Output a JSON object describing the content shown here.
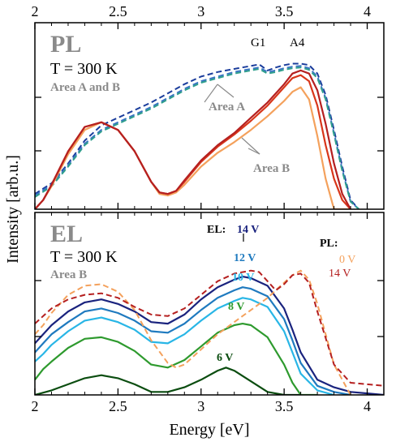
{
  "chart_data": [
    {
      "type": "line",
      "panel": "PL",
      "xlabel": "Energy [eV]",
      "ylabel": "Intensity [arb.u.]",
      "xlim": [
        2,
        4.1
      ],
      "x_ticks": [
        "2",
        "2.5",
        "3",
        "3.5",
        "4"
      ],
      "y_scale": "log",
      "y_tick_labels": false,
      "texts": {
        "tag": "PL",
        "temperature": "T = 300 K",
        "areas": "Area A and B",
        "area_a": "Area A",
        "area_b": "Area B",
        "peak_g1": "G1",
        "peak_a4": "A4"
      },
      "series": [
        {
          "group": "Area A",
          "color": "#1b3d9c",
          "dash": true,
          "x": [
            2.0,
            2.1,
            2.2,
            2.3,
            2.4,
            2.5,
            2.6,
            2.7,
            2.8,
            2.9,
            3.0,
            3.1,
            3.2,
            3.3,
            3.35,
            3.4,
            3.45,
            3.5,
            3.55,
            3.6,
            3.65,
            3.7,
            3.75,
            3.8,
            3.85,
            3.9,
            3.95
          ],
          "y": [
            0.1,
            0.17,
            0.3,
            0.45,
            0.55,
            0.6,
            0.65,
            0.7,
            0.76,
            0.82,
            0.87,
            0.9,
            0.92,
            0.94,
            0.95,
            0.91,
            0.93,
            0.945,
            0.955,
            0.955,
            0.945,
            0.89,
            0.75,
            0.52,
            0.28,
            0.06,
            0.0
          ]
        },
        {
          "group": "Area A",
          "color": "#3a74c4",
          "dash": true,
          "x": [
            2.0,
            2.1,
            2.2,
            2.3,
            2.4,
            2.5,
            2.6,
            2.7,
            2.8,
            2.9,
            3.0,
            3.1,
            3.2,
            3.3,
            3.35,
            3.4,
            3.45,
            3.5,
            3.55,
            3.6,
            3.65,
            3.7,
            3.75,
            3.8,
            3.85,
            3.9,
            3.95
          ],
          "y": [
            0.09,
            0.16,
            0.29,
            0.43,
            0.52,
            0.57,
            0.62,
            0.67,
            0.73,
            0.79,
            0.84,
            0.87,
            0.9,
            0.92,
            0.93,
            0.9,
            0.91,
            0.925,
            0.935,
            0.94,
            0.925,
            0.87,
            0.73,
            0.5,
            0.26,
            0.05,
            0.0
          ]
        },
        {
          "group": "Area A",
          "color": "#2f9e8c",
          "dash": true,
          "x": [
            2.0,
            2.1,
            2.2,
            2.3,
            2.4,
            2.5,
            2.6,
            2.7,
            2.8,
            2.9,
            3.0,
            3.1,
            3.2,
            3.3,
            3.35,
            3.4,
            3.45,
            3.5,
            3.55,
            3.6,
            3.65,
            3.7,
            3.75,
            3.8,
            3.85,
            3.9,
            3.95
          ],
          "y": [
            0.08,
            0.15,
            0.28,
            0.42,
            0.51,
            0.56,
            0.61,
            0.66,
            0.72,
            0.78,
            0.83,
            0.86,
            0.89,
            0.91,
            0.92,
            0.89,
            0.9,
            0.915,
            0.925,
            0.93,
            0.915,
            0.86,
            0.72,
            0.49,
            0.25,
            0.05,
            0.0
          ]
        },
        {
          "group": "Area B",
          "color": "#f4a15c",
          "dash": false,
          "x": [
            2.0,
            2.05,
            2.1,
            2.2,
            2.3,
            2.4,
            2.5,
            2.6,
            2.7,
            2.75,
            2.8,
            2.85,
            2.9,
            3.0,
            3.1,
            3.2,
            3.3,
            3.4,
            3.5,
            3.55,
            3.6,
            3.65,
            3.7,
            3.75,
            3.8,
            3.85,
            3.9
          ],
          "y": [
            0.0,
            0.06,
            0.15,
            0.36,
            0.52,
            0.57,
            0.52,
            0.38,
            0.18,
            0.1,
            0.09,
            0.11,
            0.16,
            0.28,
            0.37,
            0.44,
            0.52,
            0.61,
            0.71,
            0.77,
            0.8,
            0.72,
            0.48,
            0.2,
            0.0,
            0.0,
            0.0
          ]
        },
        {
          "group": "Area B",
          "color": "#d8361a",
          "dash": false,
          "x": [
            2.0,
            2.05,
            2.1,
            2.2,
            2.3,
            2.4,
            2.5,
            2.6,
            2.7,
            2.75,
            2.8,
            2.85,
            2.9,
            3.0,
            3.1,
            3.2,
            3.3,
            3.4,
            3.5,
            3.55,
            3.6,
            3.65,
            3.7,
            3.75,
            3.8,
            3.85,
            3.9
          ],
          "y": [
            0.0,
            0.06,
            0.16,
            0.38,
            0.54,
            0.57,
            0.52,
            0.38,
            0.18,
            0.11,
            0.1,
            0.12,
            0.18,
            0.31,
            0.41,
            0.49,
            0.58,
            0.68,
            0.8,
            0.86,
            0.88,
            0.84,
            0.68,
            0.42,
            0.2,
            0.06,
            0.0
          ]
        },
        {
          "group": "Area B",
          "color": "#b52020",
          "dash": false,
          "x": [
            2.0,
            2.05,
            2.1,
            2.2,
            2.3,
            2.4,
            2.5,
            2.6,
            2.7,
            2.75,
            2.8,
            2.85,
            2.9,
            3.0,
            3.1,
            3.2,
            3.3,
            3.4,
            3.5,
            3.55,
            3.6,
            3.65,
            3.7,
            3.75,
            3.8,
            3.85,
            3.9
          ],
          "y": [
            0.0,
            0.06,
            0.16,
            0.38,
            0.54,
            0.57,
            0.52,
            0.38,
            0.18,
            0.11,
            0.1,
            0.12,
            0.19,
            0.32,
            0.42,
            0.5,
            0.6,
            0.7,
            0.82,
            0.89,
            0.91,
            0.89,
            0.78,
            0.56,
            0.3,
            0.1,
            0.0
          ]
        }
      ]
    },
    {
      "type": "line",
      "panel": "EL",
      "xlabel": "Energy [eV]",
      "ylabel": "Intensity [arb.u.]",
      "xlim": [
        2,
        4.1
      ],
      "x_ticks": [
        "2",
        "2.5",
        "3",
        "3.5",
        "4"
      ],
      "y_scale": "log",
      "y_tick_labels": false,
      "texts": {
        "tag": "EL",
        "temperature": "T = 300 K",
        "area": "Area B",
        "el_legend": "EL:",
        "pl_legend": "PL:"
      },
      "el_series": [
        {
          "name": "6 V",
          "color": "#0b4d10",
          "x": [
            2.0,
            2.1,
            2.2,
            2.3,
            2.4,
            2.5,
            2.6,
            2.7,
            2.8,
            2.9,
            3.0,
            3.1,
            3.15,
            3.2,
            3.3,
            3.4,
            3.5,
            3.6
          ],
          "y": [
            0.0,
            0.03,
            0.07,
            0.11,
            0.13,
            0.11,
            0.07,
            0.02,
            0.02,
            0.05,
            0.1,
            0.16,
            0.18,
            0.16,
            0.09,
            0.02,
            0.0,
            0.0
          ]
        },
        {
          "name": "8 V",
          "color": "#2e9a2e",
          "x": [
            2.0,
            2.05,
            2.1,
            2.2,
            2.3,
            2.4,
            2.5,
            2.6,
            2.7,
            2.8,
            2.9,
            3.0,
            3.1,
            3.2,
            3.25,
            3.3,
            3.4,
            3.5,
            3.55,
            3.6,
            3.7
          ],
          "y": [
            0.1,
            0.17,
            0.22,
            0.31,
            0.37,
            0.38,
            0.35,
            0.29,
            0.2,
            0.18,
            0.23,
            0.32,
            0.41,
            0.46,
            0.47,
            0.46,
            0.38,
            0.2,
            0.08,
            0.0,
            0.0
          ]
        },
        {
          "name": "10 V",
          "color": "#29b6e6",
          "x": [
            2.0,
            2.05,
            2.1,
            2.2,
            2.3,
            2.4,
            2.5,
            2.6,
            2.7,
            2.8,
            2.9,
            3.0,
            3.1,
            3.2,
            3.25,
            3.3,
            3.4,
            3.5,
            3.55,
            3.6,
            3.7,
            3.8
          ],
          "y": [
            0.22,
            0.27,
            0.33,
            0.42,
            0.49,
            0.51,
            0.48,
            0.43,
            0.35,
            0.34,
            0.4,
            0.49,
            0.57,
            0.62,
            0.64,
            0.63,
            0.58,
            0.42,
            0.28,
            0.14,
            0.03,
            0.0
          ]
        },
        {
          "name": "12 V",
          "color": "#1f7abf",
          "x": [
            2.0,
            2.05,
            2.1,
            2.2,
            2.3,
            2.4,
            2.5,
            2.6,
            2.7,
            2.8,
            2.9,
            3.0,
            3.1,
            3.2,
            3.25,
            3.3,
            3.4,
            3.5,
            3.55,
            3.6,
            3.7,
            3.8,
            3.9
          ],
          "y": [
            0.28,
            0.34,
            0.4,
            0.48,
            0.55,
            0.57,
            0.54,
            0.49,
            0.42,
            0.41,
            0.47,
            0.56,
            0.64,
            0.69,
            0.71,
            0.7,
            0.65,
            0.5,
            0.36,
            0.21,
            0.06,
            0.02,
            0.0
          ]
        },
        {
          "name": "14 V",
          "color": "#1a237e",
          "x": [
            2.0,
            2.05,
            2.1,
            2.2,
            2.3,
            2.4,
            2.5,
            2.6,
            2.7,
            2.8,
            2.9,
            3.0,
            3.1,
            3.2,
            3.25,
            3.3,
            3.4,
            3.5,
            3.55,
            3.6,
            3.7,
            3.8,
            3.9,
            4.0,
            4.1
          ],
          "y": [
            0.34,
            0.4,
            0.46,
            0.55,
            0.61,
            0.63,
            0.6,
            0.55,
            0.48,
            0.47,
            0.53,
            0.63,
            0.71,
            0.76,
            0.78,
            0.77,
            0.72,
            0.57,
            0.43,
            0.28,
            0.1,
            0.05,
            0.02,
            0.01,
            0.0
          ]
        }
      ],
      "pl_series": [
        {
          "name": "0 V",
          "color": "#f4a15c",
          "dash": true,
          "x": [
            2.0,
            2.05,
            2.1,
            2.2,
            2.3,
            2.4,
            2.5,
            2.6,
            2.7,
            2.8,
            2.85,
            2.9,
            3.0,
            3.1,
            3.2,
            3.3,
            3.4,
            3.5,
            3.55,
            3.6,
            3.65,
            3.7,
            3.75,
            3.8,
            3.9
          ],
          "y": [
            0.4,
            0.46,
            0.54,
            0.66,
            0.72,
            0.73,
            0.68,
            0.56,
            0.36,
            0.21,
            0.18,
            0.2,
            0.3,
            0.4,
            0.48,
            0.56,
            0.64,
            0.74,
            0.79,
            0.82,
            0.76,
            0.6,
            0.4,
            0.2,
            0.0
          ]
        },
        {
          "name": "14 V",
          "color": "#b52020",
          "dash": true,
          "x": [
            2.0,
            2.05,
            2.1,
            2.2,
            2.3,
            2.4,
            2.5,
            2.6,
            2.7,
            2.8,
            2.9,
            3.0,
            3.1,
            3.2,
            3.3,
            3.35,
            3.4,
            3.45,
            3.5,
            3.55,
            3.6,
            3.65,
            3.7,
            3.8,
            3.9,
            4.0,
            4.1
          ],
          "y": [
            0.47,
            0.52,
            0.57,
            0.63,
            0.66,
            0.67,
            0.64,
            0.58,
            0.53,
            0.52,
            0.57,
            0.66,
            0.75,
            0.8,
            0.82,
            0.81,
            0.75,
            0.69,
            0.73,
            0.79,
            0.8,
            0.74,
            0.55,
            0.2,
            0.08,
            0.07,
            0.06
          ]
        }
      ]
    }
  ]
}
